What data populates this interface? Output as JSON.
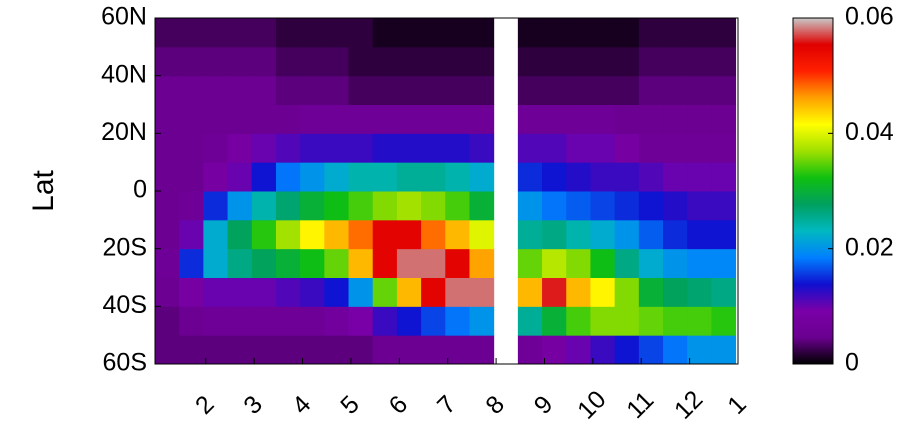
{
  "chart_data": {
    "type": "heatmap",
    "y_label": "Lat",
    "x": [
      1.2,
      1.7,
      2.2,
      2.7,
      3.2,
      3.7,
      4.2,
      4.7,
      5.2,
      5.7,
      6.2,
      6.7,
      7.2,
      7.7,
      8.2,
      8.7,
      9.2,
      9.7,
      10.2,
      10.7,
      11.2,
      11.7,
      12.2,
      12.7
    ],
    "y": [
      -55,
      -45,
      -35,
      -25,
      -15,
      -5,
      5,
      15,
      25,
      35,
      45,
      55
    ],
    "values": [
      [
        0.004,
        0.004,
        0.005,
        0.006,
        0.005,
        0.005,
        0.005,
        0.005,
        0.005,
        0.005,
        0.004,
        0.003
      ],
      [
        0.004,
        0.005,
        0.008,
        0.015,
        0.01,
        0.006,
        0.005,
        0.005,
        0.005,
        0.005,
        0.004,
        0.003
      ],
      [
        0.004,
        0.006,
        0.01,
        0.022,
        0.022,
        0.015,
        0.008,
        0.006,
        0.005,
        0.005,
        0.004,
        0.003
      ],
      [
        0.004,
        0.006,
        0.01,
        0.026,
        0.028,
        0.02,
        0.01,
        0.008,
        0.005,
        0.005,
        0.004,
        0.003
      ],
      [
        0.004,
        0.006,
        0.01,
        0.028,
        0.033,
        0.024,
        0.014,
        0.01,
        0.005,
        0.005,
        0.004,
        0.003
      ],
      [
        0.004,
        0.006,
        0.011,
        0.03,
        0.037,
        0.027,
        0.018,
        0.011,
        0.005,
        0.004,
        0.003,
        0.002
      ],
      [
        0.004,
        0.006,
        0.012,
        0.032,
        0.042,
        0.03,
        0.02,
        0.012,
        0.006,
        0.004,
        0.003,
        0.002
      ],
      [
        0.004,
        0.007,
        0.014,
        0.035,
        0.045,
        0.032,
        0.022,
        0.012,
        0.006,
        0.004,
        0.003,
        0.002
      ],
      [
        0.004,
        0.009,
        0.02,
        0.045,
        0.048,
        0.034,
        0.024,
        0.012,
        0.006,
        0.003,
        0.002,
        0.002
      ],
      [
        0.005,
        0.012,
        0.035,
        0.055,
        0.055,
        0.036,
        0.024,
        0.013,
        0.006,
        0.003,
        0.002,
        0.001
      ],
      [
        0.005,
        0.014,
        0.045,
        0.058,
        0.055,
        0.037,
        0.025,
        0.013,
        0.006,
        0.003,
        0.002,
        0.001
      ],
      [
        0.005,
        0.016,
        0.055,
        0.058,
        0.048,
        0.036,
        0.025,
        0.013,
        0.006,
        0.003,
        0.002,
        0.001
      ],
      [
        0.005,
        0.018,
        0.058,
        0.055,
        0.045,
        0.034,
        0.024,
        0.013,
        0.006,
        0.003,
        0.002,
        0.001
      ],
      [
        0.005,
        0.02,
        0.058,
        0.046,
        0.04,
        0.03,
        0.022,
        0.012,
        0.006,
        0.003,
        0.002,
        0.001
      ],
      [
        null,
        null,
        null,
        null,
        null,
        null,
        null,
        null,
        null,
        null,
        null,
        null
      ],
      [
        0.006,
        0.025,
        0.045,
        0.035,
        0.025,
        0.02,
        0.015,
        0.011,
        0.006,
        0.003,
        0.002,
        0.001
      ],
      [
        0.008,
        0.03,
        0.056,
        0.038,
        0.026,
        0.018,
        0.014,
        0.011,
        0.006,
        0.003,
        0.002,
        0.001
      ],
      [
        0.01,
        0.034,
        0.045,
        0.036,
        0.024,
        0.017,
        0.013,
        0.01,
        0.006,
        0.003,
        0.002,
        0.001
      ],
      [
        0.012,
        0.036,
        0.042,
        0.032,
        0.022,
        0.016,
        0.012,
        0.01,
        0.006,
        0.003,
        0.002,
        0.001
      ],
      [
        0.014,
        0.036,
        0.036,
        0.026,
        0.02,
        0.015,
        0.012,
        0.008,
        0.005,
        0.003,
        0.002,
        0.001
      ],
      [
        0.016,
        0.035,
        0.03,
        0.022,
        0.017,
        0.014,
        0.011,
        0.006,
        0.005,
        0.004,
        0.003,
        0.002
      ],
      [
        0.018,
        0.034,
        0.028,
        0.02,
        0.015,
        0.013,
        0.01,
        0.006,
        0.005,
        0.004,
        0.003,
        0.002
      ],
      [
        0.02,
        0.034,
        0.027,
        0.019,
        0.014,
        0.012,
        0.01,
        0.006,
        0.005,
        0.004,
        0.003,
        0.002
      ],
      [
        0.02,
        0.033,
        0.026,
        0.019,
        0.014,
        0.012,
        0.01,
        0.006,
        0.005,
        0.004,
        0.003,
        0.002
      ]
    ],
    "xlim": [
      0.95,
      13
    ],
    "xticks": [
      2,
      3,
      4,
      5,
      6,
      7,
      8,
      9,
      10,
      11,
      12,
      {
        "value": 13,
        "label": "1"
      }
    ],
    "ylim": [
      -60,
      60
    ],
    "yticks": [
      {
        "value": -60,
        "label": "60S"
      },
      {
        "value": -40,
        "label": "40S"
      },
      {
        "value": -20,
        "label": "20S"
      },
      0,
      {
        "value": 20,
        "label": "20N"
      },
      {
        "value": 40,
        "label": "40N"
      },
      {
        "value": 60,
        "label": "60N"
      }
    ],
    "clim": [
      0,
      0.06
    ],
    "cticks": [
      0,
      0.02,
      0.04,
      0.06
    ],
    "colormap": [
      "#000000",
      "#6a0090",
      "#7a00a8",
      "#1010d0",
      "#0080ff",
      "#00b8c0",
      "#00a060",
      "#10c010",
      "#a0e000",
      "#ffff00",
      "#ffa000",
      "#ff2000",
      "#e00000",
      "#c8c8c8"
    ]
  }
}
